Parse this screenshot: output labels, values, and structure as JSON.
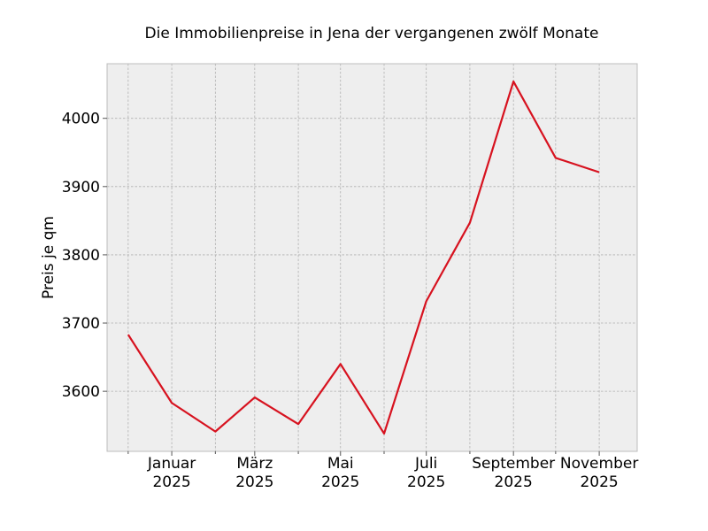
{
  "chart_data": {
    "type": "line",
    "title": "Die Immobilienpreise in Jena der vergangenen zwölf Monate",
    "xlabel": "",
    "ylabel": "Preis je qm",
    "x": [
      "2024-12",
      "2025-01",
      "2025-02",
      "2025-03",
      "2025-04",
      "2025-05",
      "2025-06",
      "2025-07",
      "2025-08",
      "2025-09",
      "2025-10",
      "2025-11"
    ],
    "xlim": [
      "2024-11-16",
      "2025-11-28"
    ],
    "ylim": [
      3512,
      4080
    ],
    "x_tick_labels": [
      {
        "x": "2025-01",
        "line1": "Januar",
        "line2": "2025"
      },
      {
        "x": "2025-03",
        "line1": "März",
        "line2": "2025"
      },
      {
        "x": "2025-05",
        "line1": "Mai",
        "line2": "2025"
      },
      {
        "x": "2025-07",
        "line1": "Juli",
        "line2": "2025"
      },
      {
        "x": "2025-09",
        "line1": "September",
        "line2": "2025"
      },
      {
        "x": "2025-11",
        "line1": "November",
        "line2": "2025"
      }
    ],
    "x_minor_ticks": [
      "2024-12",
      "2025-02",
      "2025-04",
      "2025-06",
      "2025-08",
      "2025-10"
    ],
    "y_ticks": [
      3600,
      3700,
      3800,
      3900,
      4000
    ],
    "y_tick_labels": [
      "3600",
      "3700",
      "3800",
      "3900",
      "4000"
    ],
    "series": [
      {
        "values": [
          3683,
          3583,
          3541,
          3591,
          3552,
          3640,
          3538,
          3732,
          3847,
          4054,
          3942,
          3921
        ],
        "color": "#d7121f"
      }
    ],
    "grid": true,
    "legend": "none",
    "colors": {
      "plot_background": "#eeeeee",
      "grid": "#b0b0b0",
      "frame": "#bcbcbc"
    }
  }
}
